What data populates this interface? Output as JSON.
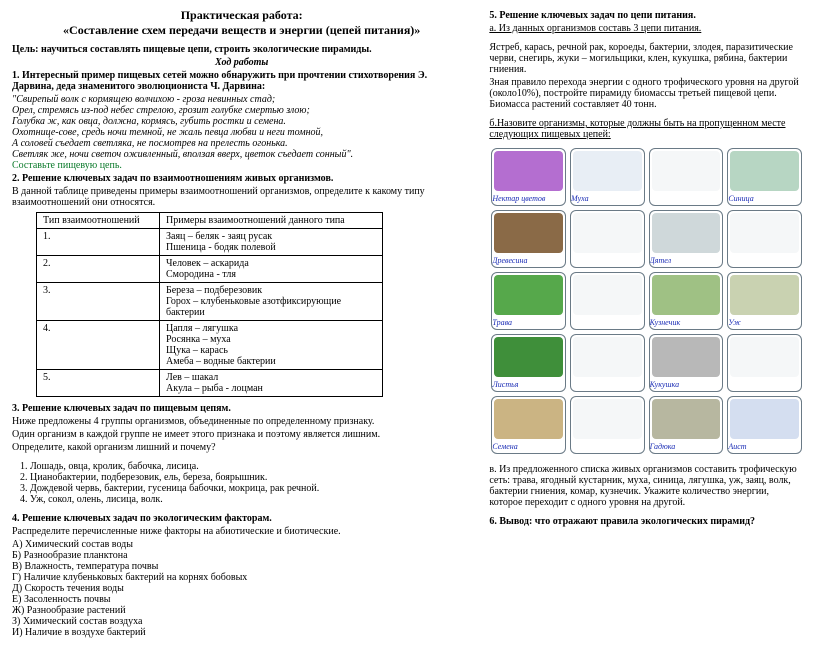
{
  "heading": {
    "line1": "Практическая работа:",
    "line2": "«Составление схем передачи веществ и энергии (цепей питания)»"
  },
  "goal": "Цель: научиться составлять пищевые цепи, строить экологические пирамиды.",
  "workflow_title": "Ход работы",
  "task1": {
    "lead": "1. Интересный пример пищевых сетей можно обнаружить при прочтении стихотворения Э. Дарвина, деда знаменитого эволюциониста Ч. Дарвина:",
    "poem": [
      "\"Свирепый волк с кормящею волчихою - гроза невинных стад;",
      "Орел, стремясь из-под небес стрелою, грозит голубке смертью злою;",
      "Голубка ж, как овца, должна, кормясь, губить ростки и семена.",
      "Охотнице-сове, средь ночи темной, не жаль певца любви и неги томной,",
      "А соловей съедает светляка, не посмотрев на прелесть огонька.",
      "Светляк же, ночи светоч оживленный, вползая вверх, цветок съедает сонный\"."
    ],
    "action": "Составьте пищевую цепь."
  },
  "task2": {
    "title": "2.  Решение ключевых задач по взаимоотношениям живых организмов.",
    "desc": "   В данной таблице приведены  примеры взаимоотношений организмов,  определите к какому типу взаимоотношений они относятся.",
    "table": {
      "col1": "Тип взаимоотношений",
      "col2": "Примеры взаимоотношений данного типа",
      "rows": [
        {
          "n": "1.",
          "ex": "Заяц – беляк -  заяц русак\nПшеница - бодяк полевой"
        },
        {
          "n": "2.",
          "ex": "Человек – аскарида\nСмородина - тля"
        },
        {
          "n": "3.",
          "ex": "Береза – подберезовик\nГорох – клубеньковые азотфиксирующие  бактерии"
        },
        {
          "n": "4.",
          "ex": "Цапля – лягушка\nРосянка – муха\nЩука – карась\nАмеба – водные бактерии"
        },
        {
          "n": "5.",
          "ex": "Лев – шакал\nАкула – рыба - лоцман"
        }
      ]
    }
  },
  "task3": {
    "title": "3. Решение ключевых задач по пищевым цепям.",
    "p1": "   Ниже предложены 4 группы организмов, объединенные по определенному признаку.",
    "p2": "   Один организм в каждой группе не имеет этого признака и поэтому является лишним.",
    "p3": "   Определите, какой организм лишний и почему?",
    "items": [
      "Лошадь, овца, кролик, бабочка, лисица.",
      "Цианобактерии, подберезовик, ель, береза, боярышник.",
      "Дождевой червь, бактерии, гусеница бабочки, мокрица, рак речной.",
      "Уж, сокол, олень, лисица, волк."
    ]
  },
  "task4": {
    "title": "4. Решение ключевых задач по экологическим факторам.",
    "lead": "Распределите перечисленные ниже факторы на абиотические и биотические.",
    "factors": [
      "А) Химический состав воды",
      "Б) Разнообразие планктона",
      "В) Влажность, температура почвы",
      "Г) Наличие клубеньковых бактерий на корнях бобовых",
      "Д) Скорость течения воды",
      "Е) Засоленность почвы",
      "Ж) Разнообразие растений",
      "З) Химический состав воздуха",
      "И) Наличие в воздухе бактерий"
    ]
  },
  "task5": {
    "title": "5. Решение ключевых задач по цепи питания.",
    "a_label": "а.  Из данных организмов составь 3 цепи питания.",
    "a_text": "Ястреб, карась, речной рак, короеды, бактерии, злодея, паразитические черви, снегирь, жуки – могильщики, клен, кукушка, рябина, бактерии гниения.",
    "a_rule": "Зная правило перехода энергии с одного трофического уровня на другой (около10%), постройте пирамиду биомассы третьей пищевой цепи. Биомасса растений составляет 40 тонн.",
    "b_label": "б.Назовите организмы, которые должны быть на пропущенном месте следующих пищевых цепей:",
    "grid": [
      [
        {
          "label": "Нектар цветов",
          "img_color": "#b46ed0"
        },
        {
          "label": "Муха",
          "img_color": "#e8eef5"
        },
        {
          "label": "",
          "empty": true
        },
        {
          "label": "Синица",
          "img_color": "#b7d6c3"
        }
      ],
      [
        {
          "label": "Древесина",
          "img_color": "#8a6a47"
        },
        {
          "label": "",
          "empty": true
        },
        {
          "label": "Дятел",
          "img_color": "#cfd8da"
        },
        {
          "label": "",
          "empty": true
        }
      ],
      [
        {
          "label": "Трава",
          "img_color": "#56a84b"
        },
        {
          "label": "",
          "empty": true
        },
        {
          "label": "Кузнечик",
          "img_color": "#9fc184"
        },
        {
          "label": "Уж",
          "img_color": "#c9d2b1"
        }
      ],
      [
        {
          "label": "Листья",
          "img_color": "#3f8f3a"
        },
        {
          "label": "",
          "empty": true
        },
        {
          "label": "Кукушка",
          "img_color": "#b8b8b8"
        },
        {
          "label": "",
          "empty": true
        }
      ],
      [
        {
          "label": "Семена",
          "img_color": "#cbb483"
        },
        {
          "label": "",
          "empty": true
        },
        {
          "label": "Гадюка",
          "img_color": "#b7b7a0"
        },
        {
          "label": "Аист",
          "img_color": "#d4def0"
        }
      ]
    ],
    "v_text": "в.  Из предложенного списка живых организмов составить трофическую сеть: трава, ягодный кустарник, муха, синица, лягушка, уж, заяц, волк, бактерии гниения, комар, кузнечик. Укажите количество энергии, которое переходит с одного уровня на другой."
  },
  "task6": "6. Вывод: что отражают правила экологических пирамид?"
}
